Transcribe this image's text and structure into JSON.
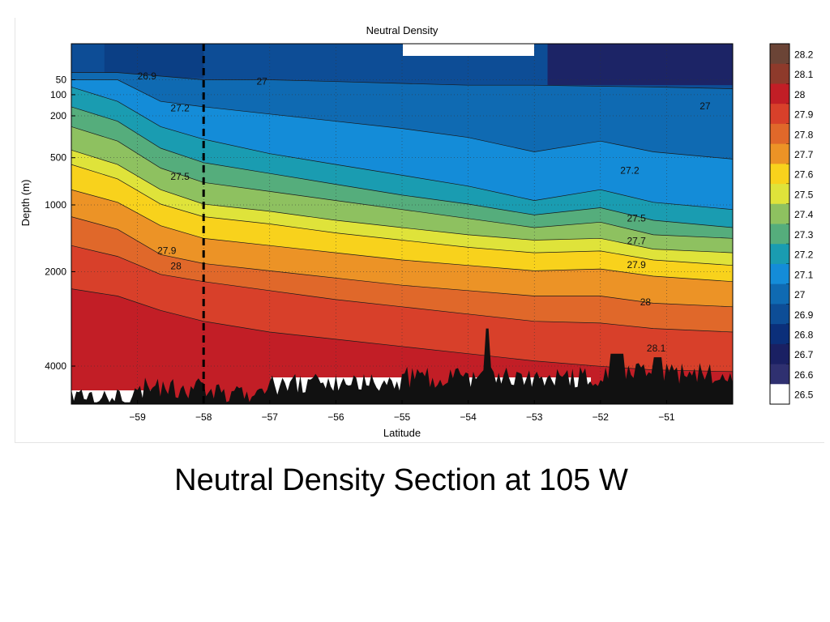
{
  "slide": {
    "caption": "Neutral Density Section at 105 W"
  },
  "chart_data": {
    "type": "heatmap",
    "title": "Neutral Density",
    "xlabel": "Latitude",
    "ylabel": "Depth (m)",
    "x_ticks": [
      -59,
      -58,
      -57,
      -56,
      -55,
      -54,
      -53,
      -52,
      -51
    ],
    "x_tick_labels": [
      "−59",
      "−58",
      "−57",
      "−56",
      "−55",
      "−54",
      "−53",
      "−52",
      "−51"
    ],
    "xlim": [
      -60,
      -50
    ],
    "y_ticks": [
      50,
      100,
      200,
      500,
      1000,
      2000,
      4000
    ],
    "y_tick_labels": [
      "50",
      "100",
      "200",
      "500",
      "1000",
      "2000",
      "4000"
    ],
    "y_scale": "square-root",
    "ylim": [
      0,
      5000
    ],
    "y_reversed": true,
    "colorbar": {
      "levels": [
        "28.2",
        "28.1",
        "28",
        "27.9",
        "27.8",
        "27.7",
        "27.6",
        "27.5",
        "27.4",
        "27.3",
        "27.2",
        "27.1",
        "27",
        "26.9",
        "26.8",
        "26.7",
        "26.6",
        "26.5"
      ],
      "colors": [
        "#6b4436",
        "#8e3a2b",
        "#c21e26",
        "#d8402a",
        "#e0682a",
        "#ec9326",
        "#f8d21c",
        "#dfe33a",
        "#8ec160",
        "#55ad7c",
        "#1a9cb1",
        "#148cd8",
        "#0f6ab2",
        "#0d4d96",
        "#0b2f7a",
        "#1a2063",
        "#2f3070",
        "#ffffff"
      ]
    },
    "contour_labels": [
      {
        "text": "26.9",
        "x": -59.0,
        "depth": 40
      },
      {
        "text": "27",
        "x": -57.2,
        "depth": 55
      },
      {
        "text": "27",
        "x": -50.5,
        "depth": 150
      },
      {
        "text": "27.2",
        "x": -58.5,
        "depth": 160
      },
      {
        "text": "27.2",
        "x": -51.7,
        "depth": 620
      },
      {
        "text": "27.5",
        "x": -58.5,
        "depth": 680
      },
      {
        "text": "27.5",
        "x": -51.6,
        "depth": 1170
      },
      {
        "text": "27.7",
        "x": -51.6,
        "depth": 1500
      },
      {
        "text": "27.9",
        "x": -58.7,
        "depth": 1650
      },
      {
        "text": "27.9",
        "x": -51.6,
        "depth": 1880
      },
      {
        "text": "28",
        "x": -58.5,
        "depth": 1900
      },
      {
        "text": "28",
        "x": -51.4,
        "depth": 2570
      },
      {
        "text": "28.1",
        "x": -51.3,
        "depth": 3570
      }
    ],
    "section_line_latitude": -58,
    "bottom_fill": "#111111"
  }
}
